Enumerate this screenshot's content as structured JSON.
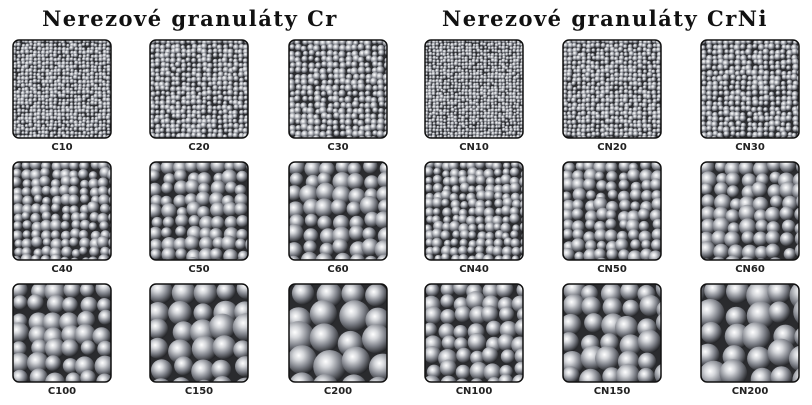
{
  "groups": [
    {
      "title": "Nerezové granuláty Cr",
      "items": [
        "C10",
        "C20",
        "C30",
        "C40",
        "C50",
        "C60",
        "C100",
        "C150",
        "C200"
      ]
    },
    {
      "title": "Nerezové granuláty CrNi",
      "items": [
        "CN10",
        "CN20",
        "CN30",
        "CN40",
        "CN50",
        "CN60",
        "CN100",
        "CN150",
        "CN200"
      ]
    }
  ]
}
